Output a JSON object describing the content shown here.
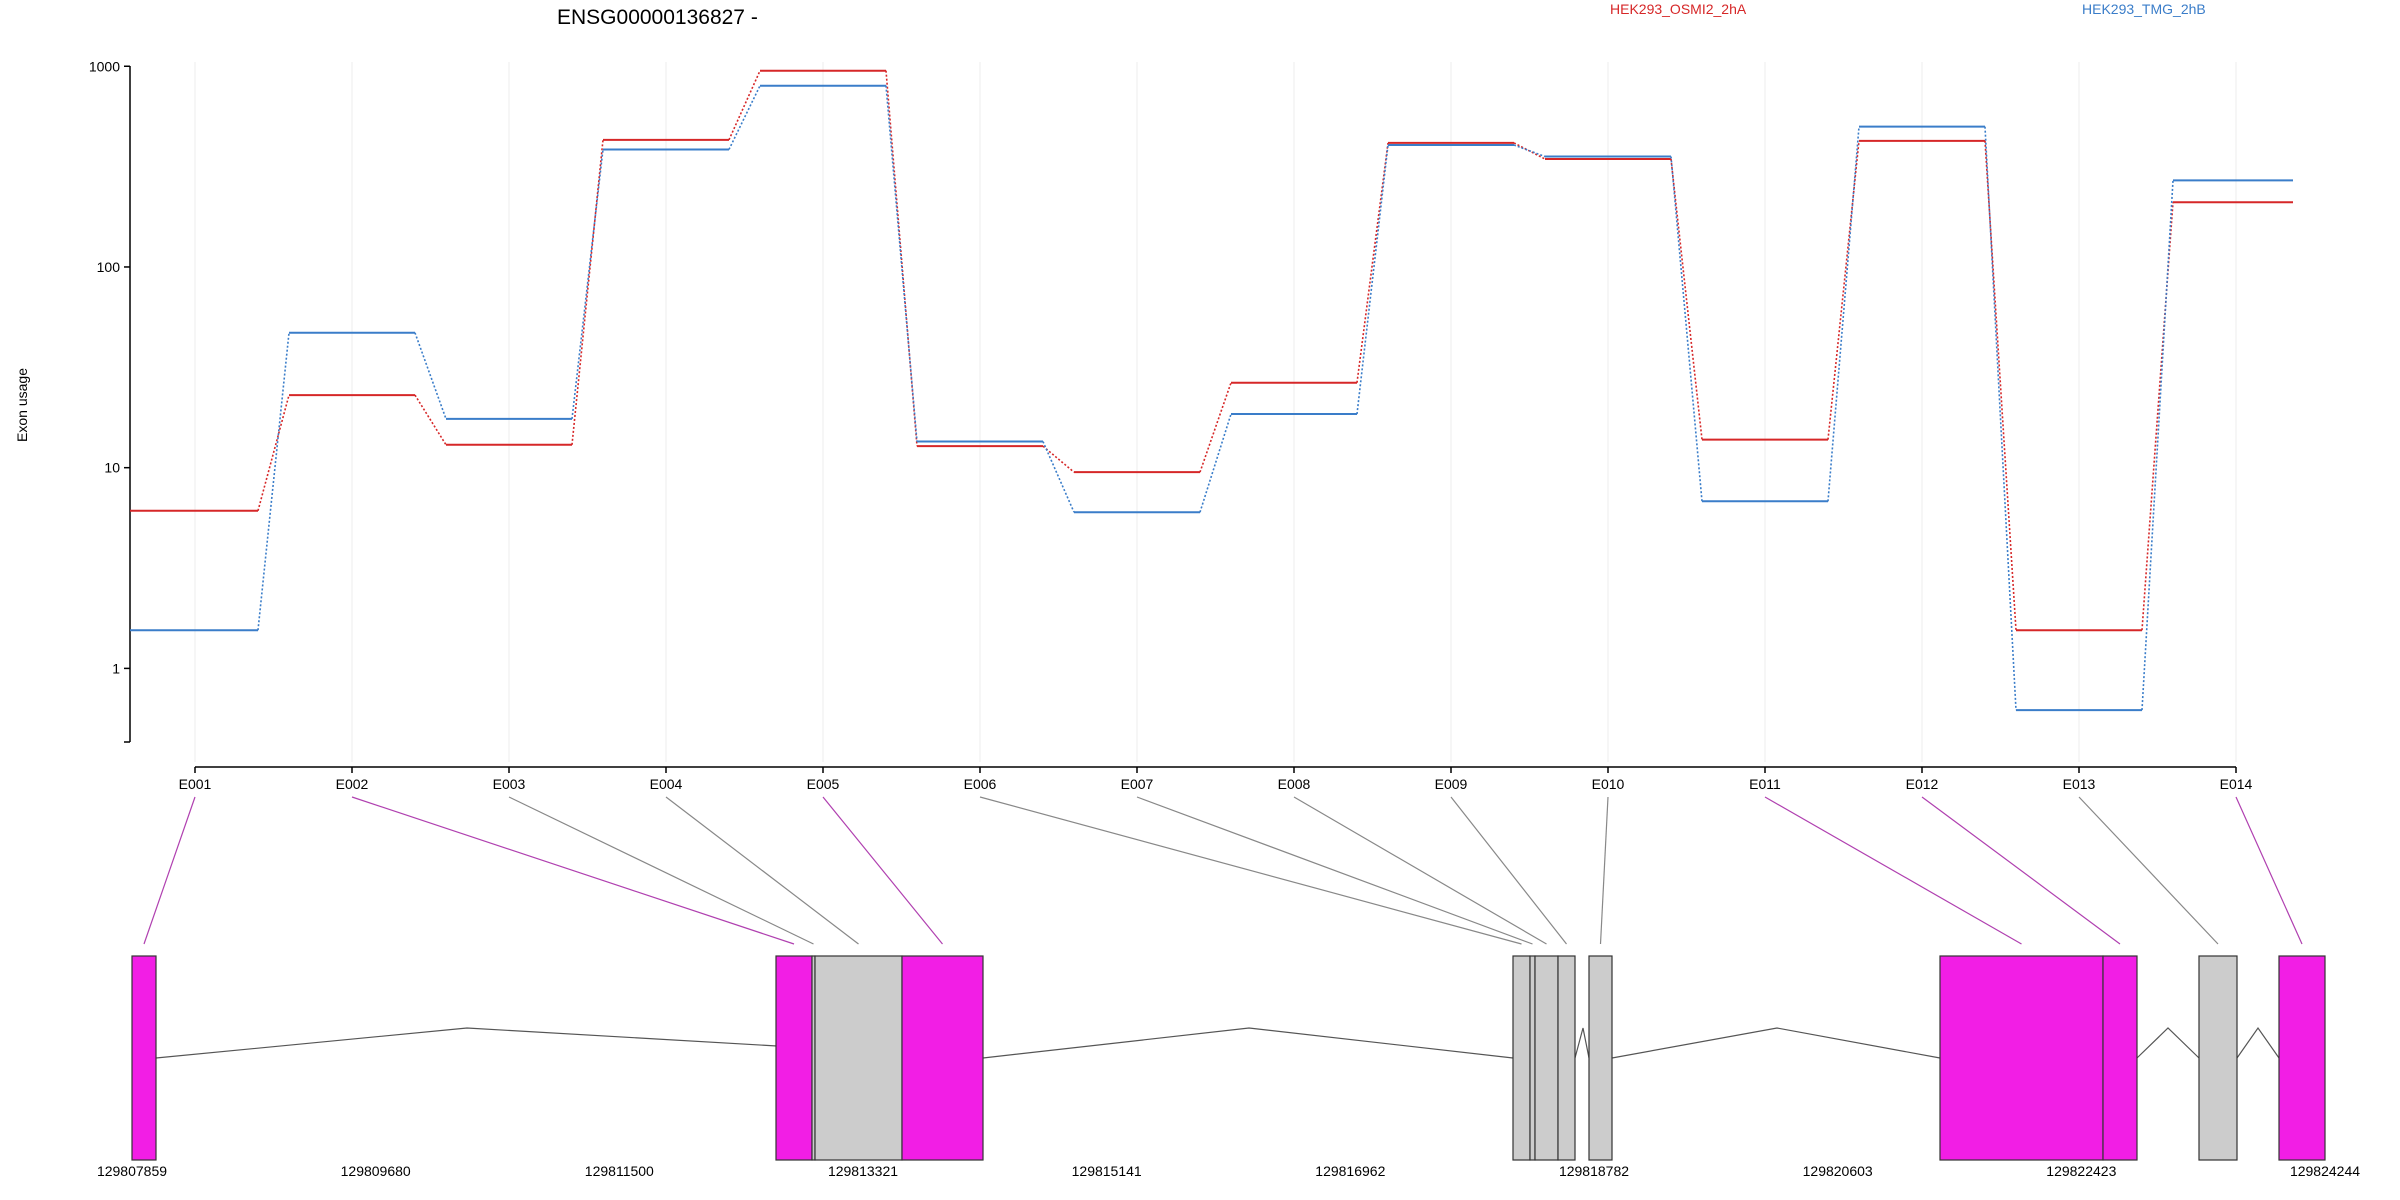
{
  "chart_data": {
    "type": "line",
    "title": "ENSG00000136827 -",
    "ylabel": "Exon usage",
    "yscale": "log",
    "ylim": [
      0.45,
      1050
    ],
    "yticks": [
      1,
      10,
      100,
      1000
    ],
    "ytick_labels": [
      "1",
      "10",
      "100",
      "1000"
    ],
    "categories": [
      "E001",
      "E002",
      "E003",
      "E004",
      "E005",
      "E006",
      "E007",
      "E008",
      "E009",
      "E010",
      "E011",
      "E012",
      "E013",
      "E014"
    ],
    "series": [
      {
        "name": "HEK293_OSMI2_2hA",
        "color": "#d62728",
        "values": [
          6.1,
          23,
          13,
          430,
          950,
          12.8,
          9.5,
          26.5,
          415,
          345,
          13.8,
          425,
          1.55,
          210
        ]
      },
      {
        "name": "HEK293_TMG_2hB",
        "color": "#3a7dc9",
        "values": [
          1.55,
          47,
          17.5,
          385,
          800,
          13.5,
          6,
          18.5,
          405,
          355,
          6.8,
          500,
          0.62,
          270
        ]
      }
    ],
    "genomic_ticks": [
      "129807859",
      "129809680",
      "129811500",
      "129813321",
      "129815141",
      "129816962",
      "129818782",
      "129820603",
      "129822423",
      "129824244"
    ],
    "exon_colors": {
      "significant": "#f21ee5",
      "not_significant": "#cccccc"
    },
    "exon_significant": [
      true,
      true,
      false,
      false,
      true,
      false,
      false,
      false,
      false,
      false,
      true,
      true,
      false,
      true
    ]
  }
}
